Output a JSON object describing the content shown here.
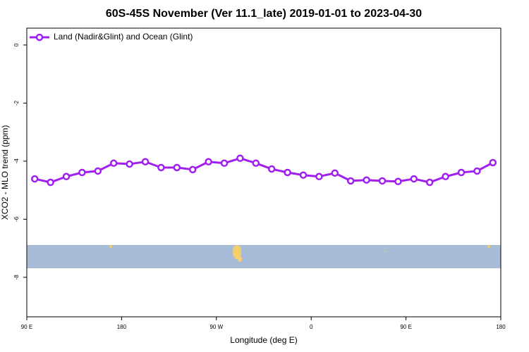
{
  "chart_data": {
    "type": "line",
    "title": "60S-45S November (Ver 11.1_late)   2019-01-01 to 2023-04-30",
    "xlabel": "Longitude (deg E)",
    "ylabel": "XCO2 - MLO trend (ppm)",
    "x": [
      97.5,
      112.5,
      127.5,
      142.5,
      157.5,
      172.5,
      187.5,
      202.5,
      217.5,
      232.5,
      247.5,
      262.5,
      277.5,
      292.5,
      307.5,
      322.5,
      337.5,
      352.5,
      367.5,
      382.5,
      397.5,
      412.5,
      427.5,
      442.5,
      457.5,
      472.5,
      487.5,
      502.5,
      517.5,
      532.5
    ],
    "series": [
      {
        "name": "Land (Nadir&Glint) and Ocean (Glint)",
        "color": "#a020f0",
        "values": [
          -4.61,
          -4.73,
          -4.53,
          -4.39,
          -4.34,
          -4.07,
          -4.1,
          -4.02,
          -4.22,
          -4.22,
          -4.29,
          -4.02,
          -4.07,
          -3.9,
          -4.07,
          -4.27,
          -4.39,
          -4.48,
          -4.53,
          -4.41,
          -4.68,
          -4.65,
          -4.68,
          -4.7,
          -4.61,
          -4.73,
          -4.53,
          -4.39,
          -4.34,
          -4.05
        ]
      }
    ],
    "xlim": [
      90,
      540
    ],
    "xticks": [
      {
        "value": 90,
        "label": "90 E"
      },
      180,
      {
        "value": 270,
        "label": "90 W"
      },
      {
        "value": 360,
        "label": "0"
      },
      {
        "value": 450,
        "label": "90 E"
      },
      180.0
    ],
    "ylim": [
      -9.36,
      0.58
    ],
    "yticks": [
      0,
      -2,
      -4,
      -6,
      -8
    ],
    "legend": "upper left"
  }
}
